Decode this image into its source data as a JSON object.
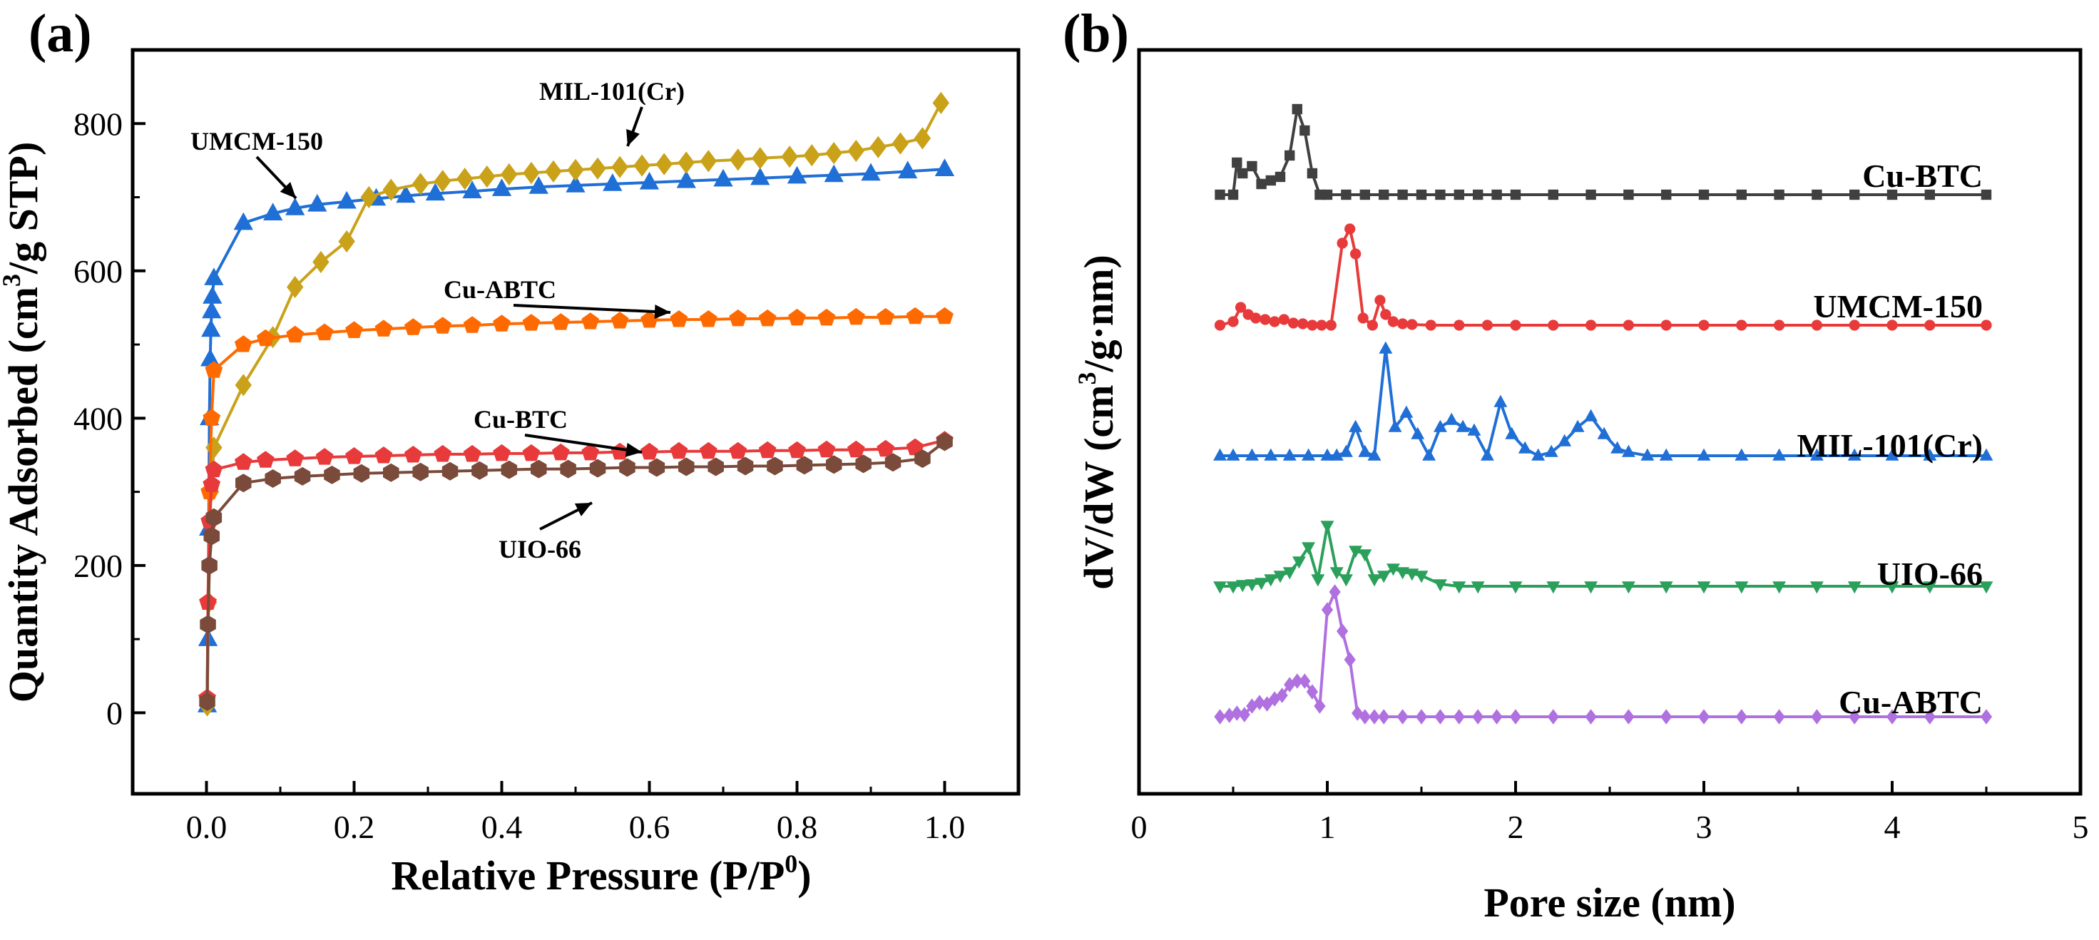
{
  "chart_data": [
    {
      "type": "line",
      "panel": "(a)",
      "xlabel": "Relative Pressure (P/P",
      "xlabel_sup": "0",
      "xlabel_end": ")",
      "ylabel": "Quantity Adsorbed (cm",
      "ylabel_sup": "3",
      "ylabel_end": "/g STP)",
      "xlim": [
        -0.1,
        1.1
      ],
      "ylim": [
        -110,
        900
      ],
      "xticks": [
        "0.0",
        "0.2",
        "0.4",
        "0.6",
        "0.8",
        "1.0"
      ],
      "yticks": [
        "0",
        "200",
        "400",
        "600",
        "800"
      ],
      "series": [
        {
          "name": "UMCM-150",
          "color": "#1f6fd6",
          "marker": "triangle",
          "x": [
            0.001,
            0.002,
            0.003,
            0.004,
            0.005,
            0.006,
            0.007,
            0.008,
            0.01,
            0.05,
            0.09,
            0.12,
            0.15,
            0.19,
            0.23,
            0.27,
            0.31,
            0.36,
            0.4,
            0.45,
            0.5,
            0.55,
            0.6,
            0.65,
            0.7,
            0.75,
            0.8,
            0.85,
            0.9,
            0.95,
            1.0
          ],
          "y": [
            10,
            100,
            250,
            400,
            480,
            520,
            545,
            565,
            590,
            665,
            678,
            685,
            690,
            694,
            698,
            702,
            705,
            708,
            711,
            714,
            716,
            718,
            720,
            722,
            724,
            726,
            728,
            730,
            732,
            735,
            738
          ]
        },
        {
          "name": "MIL-101(Cr)",
          "color": "#c9a21a",
          "marker": "diamond",
          "x": [
            0.001,
            0.003,
            0.006,
            0.01,
            0.05,
            0.09,
            0.12,
            0.155,
            0.19,
            0.22,
            0.25,
            0.29,
            0.32,
            0.35,
            0.38,
            0.41,
            0.44,
            0.47,
            0.5,
            0.53,
            0.56,
            0.59,
            0.62,
            0.65,
            0.68,
            0.72,
            0.75,
            0.79,
            0.82,
            0.85,
            0.88,
            0.91,
            0.94,
            0.97,
            0.995
          ],
          "y": [
            10,
            150,
            300,
            360,
            445,
            510,
            578,
            612,
            640,
            700,
            710,
            718,
            722,
            725,
            728,
            731,
            733,
            735,
            737,
            739,
            741,
            743,
            745,
            747,
            749,
            751,
            753,
            755,
            757,
            760,
            763,
            768,
            773,
            780,
            828
          ]
        },
        {
          "name": "Cu-ABTC",
          "color": "#ff6a00",
          "marker": "pentagon",
          "x": [
            0.001,
            0.002,
            0.004,
            0.007,
            0.01,
            0.05,
            0.08,
            0.12,
            0.16,
            0.2,
            0.24,
            0.28,
            0.32,
            0.36,
            0.4,
            0.44,
            0.48,
            0.52,
            0.56,
            0.6,
            0.64,
            0.68,
            0.72,
            0.76,
            0.8,
            0.84,
            0.88,
            0.92,
            0.96,
            1.0
          ],
          "y": [
            20,
            150,
            300,
            400,
            465,
            500,
            508,
            513,
            516,
            519,
            521,
            523,
            525,
            526,
            528,
            529,
            530,
            531,
            532,
            533,
            534,
            534,
            535,
            535,
            536,
            536,
            537,
            537,
            538,
            538
          ]
        },
        {
          "name": "Cu-BTC",
          "color": "#e83a3a",
          "marker": "pentagon",
          "x": [
            0.001,
            0.002,
            0.004,
            0.007,
            0.01,
            0.05,
            0.08,
            0.12,
            0.16,
            0.2,
            0.24,
            0.28,
            0.32,
            0.36,
            0.4,
            0.44,
            0.48,
            0.52,
            0.56,
            0.6,
            0.64,
            0.68,
            0.72,
            0.76,
            0.8,
            0.84,
            0.88,
            0.92,
            0.96,
            1.0
          ],
          "y": [
            20,
            150,
            260,
            310,
            330,
            340,
            343,
            345,
            347,
            348,
            349,
            350,
            351,
            351,
            352,
            352,
            353,
            353,
            354,
            354,
            355,
            355,
            355,
            356,
            356,
            357,
            357,
            358,
            360,
            370
          ]
        },
        {
          "name": "UIO-66",
          "color": "#7a4a3a",
          "marker": "hexagon",
          "x": [
            0.001,
            0.002,
            0.004,
            0.007,
            0.01,
            0.05,
            0.09,
            0.13,
            0.17,
            0.21,
            0.25,
            0.29,
            0.33,
            0.37,
            0.41,
            0.45,
            0.49,
            0.53,
            0.57,
            0.61,
            0.65,
            0.69,
            0.73,
            0.77,
            0.81,
            0.85,
            0.89,
            0.93,
            0.97,
            1.0
          ],
          "y": [
            15,
            120,
            200,
            240,
            265,
            312,
            318,
            321,
            323,
            325,
            326,
            327,
            328,
            329,
            330,
            331,
            331,
            332,
            333,
            333,
            334,
            334,
            335,
            335,
            336,
            337,
            338,
            340,
            345,
            368
          ]
        }
      ],
      "annotations": [
        "MIL-101(Cr)",
        "UMCM-150",
        "Cu-ABTC",
        "Cu-BTC",
        "UIO-66"
      ]
    },
    {
      "type": "line",
      "panel": "(b)",
      "xlabel": "Pore size (nm)",
      "ylabel": "dV/dW (cm",
      "ylabel_sup": "3",
      "ylabel_end": "/g·nm)",
      "xlim": [
        0,
        5
      ],
      "xticks": [
        "0",
        "1",
        "2",
        "3",
        "4",
        "5"
      ],
      "series": [
        {
          "name": "Cu-BTC",
          "color": "#404040",
          "marker": "square",
          "offset": 4,
          "x": [
            0.43,
            0.5,
            0.52,
            0.55,
            0.6,
            0.65,
            0.7,
            0.75,
            0.8,
            0.84,
            0.88,
            0.92,
            0.96,
            1.0,
            1.1,
            1.2,
            1.3,
            1.4,
            1.5,
            1.6,
            1.7,
            1.8,
            1.9,
            2.0,
            2.2,
            2.4,
            2.6,
            2.8,
            3.0,
            3.2,
            3.4,
            3.6,
            3.8,
            4.0,
            4.2,
            4.5
          ],
          "y": [
            0,
            0,
            0.45,
            0.3,
            0.4,
            0.15,
            0.2,
            0.25,
            0.55,
            1.2,
            0.9,
            0.3,
            0,
            0,
            0,
            0,
            0,
            0,
            0,
            0,
            0,
            0,
            0,
            0,
            0,
            0,
            0,
            0,
            0,
            0,
            0,
            0,
            0,
            0,
            0,
            0
          ]
        },
        {
          "name": "UMCM-150",
          "color": "#e83a3a",
          "marker": "circle",
          "offset": 3,
          "x": [
            0.43,
            0.5,
            0.54,
            0.58,
            0.62,
            0.67,
            0.72,
            0.77,
            0.82,
            0.87,
            0.92,
            0.97,
            1.02,
            1.08,
            1.12,
            1.15,
            1.19,
            1.24,
            1.28,
            1.31,
            1.35,
            1.4,
            1.45,
            1.55,
            1.7,
            1.85,
            2.0,
            2.2,
            2.4,
            2.6,
            2.8,
            3.0,
            3.2,
            3.4,
            3.6,
            3.8,
            4.0,
            4.2,
            4.5
          ],
          "y": [
            0,
            0.05,
            0.25,
            0.15,
            0.1,
            0.08,
            0.05,
            0.08,
            0.03,
            0.02,
            0,
            0,
            0,
            1.15,
            1.35,
            1.0,
            0.1,
            0,
            0.35,
            0.15,
            0.05,
            0.02,
            0.01,
            0,
            0,
            0,
            0,
            0,
            0,
            0,
            0,
            0,
            0,
            0,
            0,
            0,
            0,
            0,
            0
          ]
        },
        {
          "name": "MIL-101(Cr)",
          "color": "#1f6fd6",
          "marker": "triangle",
          "offset": 2,
          "x": [
            0.43,
            0.5,
            0.6,
            0.7,
            0.8,
            0.9,
            1.0,
            1.05,
            1.1,
            1.15,
            1.2,
            1.25,
            1.31,
            1.36,
            1.42,
            1.48,
            1.54,
            1.6,
            1.66,
            1.72,
            1.78,
            1.85,
            1.92,
            1.98,
            2.05,
            2.12,
            2.19,
            2.26,
            2.33,
            2.4,
            2.47,
            2.54,
            2.6,
            2.7,
            2.8,
            3.0,
            3.2,
            3.4,
            3.6,
            3.8,
            4.0,
            4.2,
            4.5
          ],
          "y": [
            0,
            0,
            0,
            0,
            0,
            0,
            0,
            0,
            0.05,
            0.4,
            0.05,
            0,
            1.5,
            0.4,
            0.6,
            0.3,
            0,
            0.4,
            0.5,
            0.4,
            0.35,
            0,
            0.75,
            0.3,
            0.1,
            0,
            0.05,
            0.2,
            0.4,
            0.55,
            0.3,
            0.1,
            0.05,
            0,
            0,
            0,
            0,
            0,
            0,
            0,
            0,
            0,
            0
          ]
        },
        {
          "name": "UIO-66",
          "color": "#2aa05a",
          "marker": "triangle-down",
          "offset": 1,
          "x": [
            0.43,
            0.5,
            0.55,
            0.6,
            0.65,
            0.7,
            0.75,
            0.8,
            0.85,
            0.9,
            0.95,
            1.0,
            1.05,
            1.1,
            1.15,
            1.2,
            1.25,
            1.3,
            1.35,
            1.4,
            1.45,
            1.5,
            1.6,
            1.7,
            1.8,
            2.0,
            2.2,
            2.4,
            2.6,
            2.8,
            3.0,
            3.2,
            3.4,
            3.6,
            3.8,
            4.0,
            4.2,
            4.5
          ],
          "y": [
            0,
            0,
            0.02,
            0.03,
            0.05,
            0.1,
            0.15,
            0.2,
            0.35,
            0.55,
            0.1,
            0.85,
            0.2,
            0.1,
            0.5,
            0.45,
            0.1,
            0.15,
            0.25,
            0.2,
            0.18,
            0.15,
            0.03,
            0,
            0,
            0,
            0,
            0,
            0,
            0,
            0,
            0,
            0,
            0,
            0,
            0,
            0,
            0
          ]
        },
        {
          "name": "Cu-ABTC",
          "color": "#b070e0",
          "marker": "diamond",
          "offset": 0,
          "x": [
            0.43,
            0.48,
            0.52,
            0.56,
            0.6,
            0.64,
            0.68,
            0.72,
            0.76,
            0.8,
            0.84,
            0.88,
            0.92,
            0.96,
            1.0,
            1.04,
            1.08,
            1.12,
            1.16,
            1.2,
            1.25,
            1.3,
            1.4,
            1.5,
            1.6,
            1.7,
            1.8,
            1.9,
            2.0,
            2.2,
            2.4,
            2.6,
            2.8,
            3.0,
            3.2,
            3.4,
            3.6,
            3.8,
            4.0,
            4.2,
            4.5
          ],
          "y": [
            0,
            0.02,
            0.05,
            0.03,
            0.15,
            0.2,
            0.18,
            0.25,
            0.3,
            0.45,
            0.5,
            0.5,
            0.35,
            0.15,
            1.5,
            1.75,
            1.2,
            0.8,
            0.05,
            0,
            0,
            0,
            0,
            0,
            0,
            0,
            0,
            0,
            0,
            0,
            0,
            0,
            0,
            0,
            0,
            0,
            0,
            0,
            0,
            0,
            0
          ]
        }
      ],
      "labels": [
        "Cu-BTC",
        "UMCM-150",
        "MIL-101(Cr)",
        "UIO-66",
        "Cu-ABTC"
      ]
    }
  ]
}
